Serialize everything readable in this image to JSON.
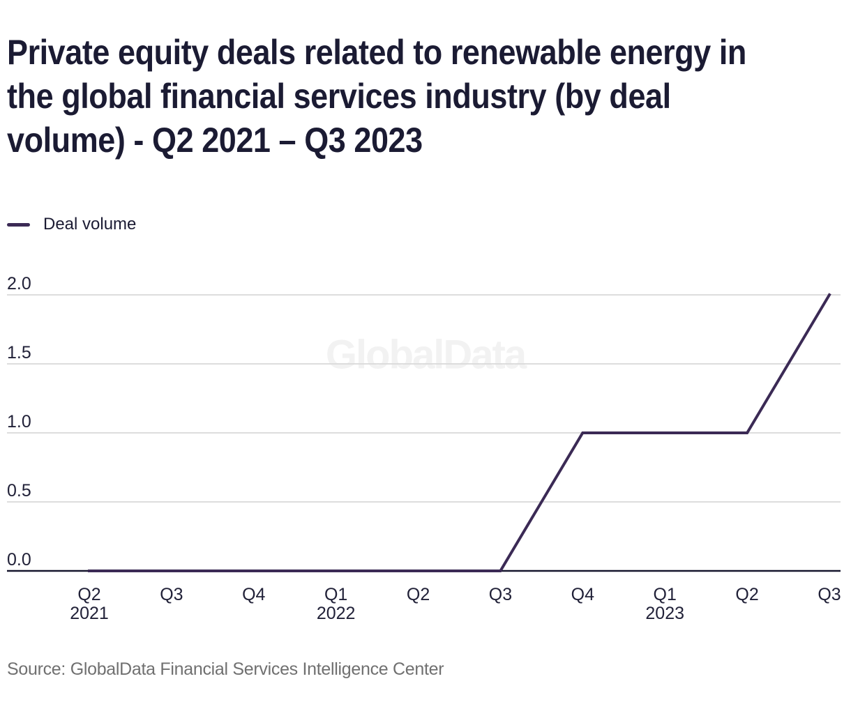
{
  "page": {
    "title_lines": [
      "Private equity deals related to renewable energy in",
      "the global financial services industry (by deal",
      "volume) - Q2 2021 – Q3 2023"
    ],
    "watermark": "GlobalData",
    "source": "Source: GlobalData Financial Services Intelligence Center"
  },
  "legend": {
    "items": [
      {
        "label": "Deal volume",
        "color": "#3b2a55"
      }
    ]
  },
  "colors": {
    "background": "#ffffff",
    "title": "#1b1b33",
    "axis_text": "#212138",
    "grid": "#d8d8d8",
    "baseline": "#16162d",
    "line": "#3b2a55",
    "source_text": "#707070",
    "watermark": "#f2f2f2"
  },
  "chart_data": {
    "type": "line",
    "title": "Private equity deals related to renewable energy in the global financial services industry (by deal volume) - Q2 2021 – Q3 2023",
    "xlabel": "",
    "ylabel": "",
    "x_tick_labels": [
      "Q2",
      "Q3",
      "Q4",
      "Q1",
      "Q2",
      "Q3",
      "Q4",
      "Q1",
      "Q2",
      "Q3"
    ],
    "x_year_labels": [
      "2021",
      "",
      "",
      "2022",
      "",
      "",
      "",
      "2023",
      "",
      ""
    ],
    "categories": [
      "Q2 2021",
      "Q3 2021",
      "Q4 2021",
      "Q1 2022",
      "Q2 2022",
      "Q3 2022",
      "Q4 2022",
      "Q1 2023",
      "Q2 2023",
      "Q3 2023"
    ],
    "series": [
      {
        "name": "Deal volume",
        "values": [
          0,
          0,
          0,
          0,
          0,
          0,
          1,
          1,
          1,
          2
        ]
      }
    ],
    "yticks": [
      "0.0",
      "0.5",
      "1.0",
      "1.5",
      "2.0"
    ],
    "ytick_values": [
      0,
      0.5,
      1,
      1.5,
      2
    ],
    "ylim": [
      0,
      2
    ],
    "grid": true,
    "legend_position": "top-left",
    "watermark": "GlobalData"
  }
}
